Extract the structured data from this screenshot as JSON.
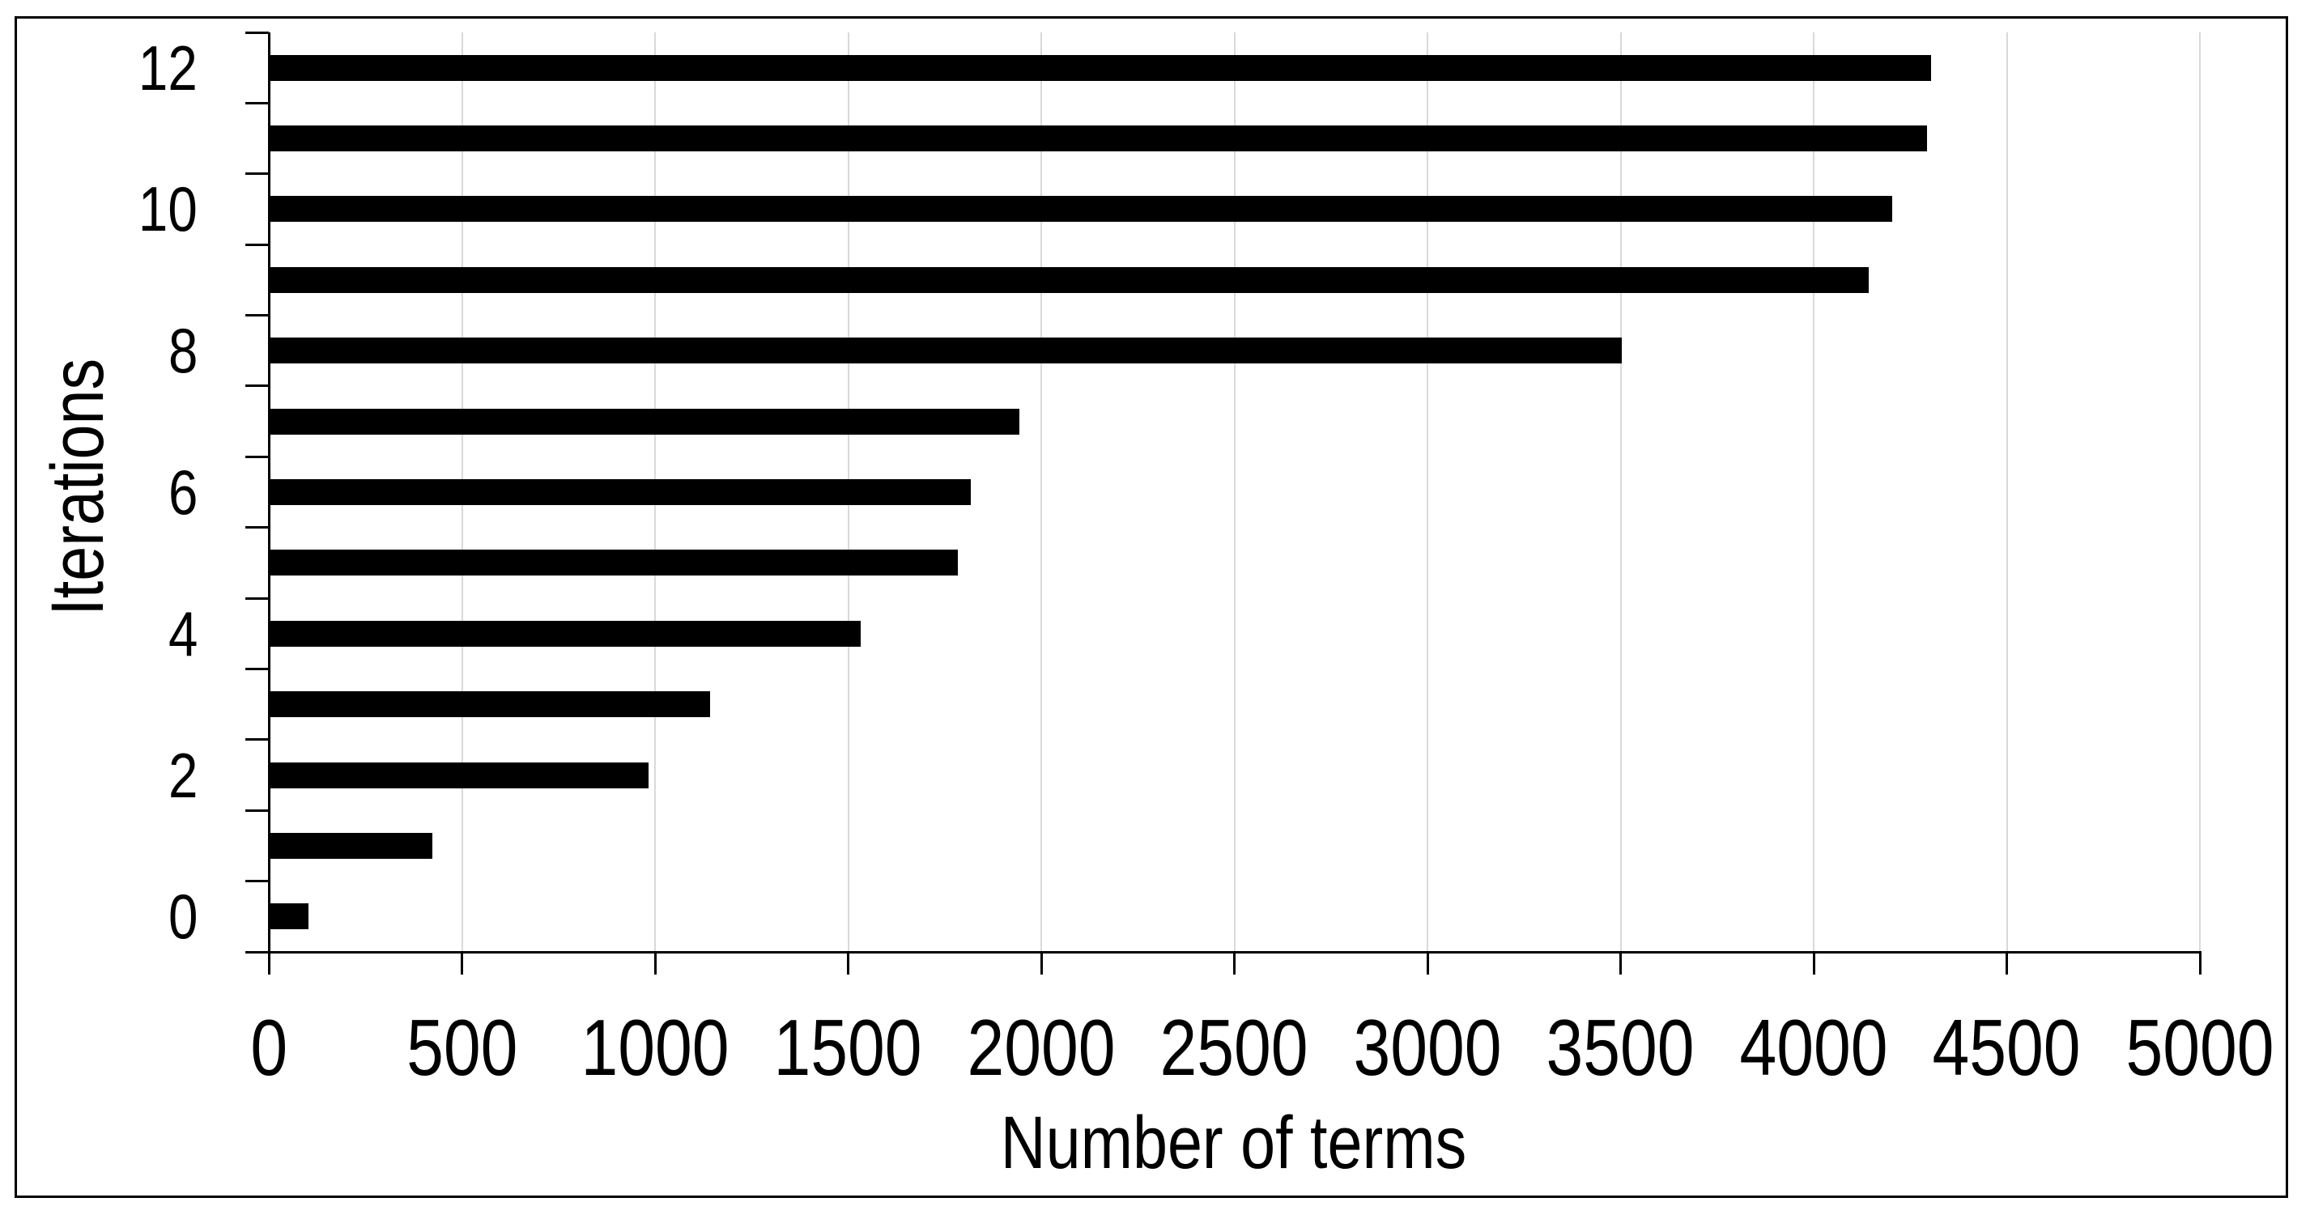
{
  "chart_data": {
    "type": "bar",
    "orientation": "horizontal",
    "title": "",
    "xlabel": "Number of terms",
    "ylabel": "Iterations",
    "categories": [
      0,
      1,
      2,
      3,
      4,
      5,
      6,
      7,
      8,
      9,
      10,
      11,
      12
    ],
    "values": [
      100,
      420,
      980,
      1140,
      1530,
      1780,
      1815,
      1940,
      3500,
      4140,
      4200,
      4290,
      4300
    ],
    "xlim": [
      0,
      5000
    ],
    "x_tick_step": 500,
    "x_tick_labels": [
      "0",
      "500",
      "1000",
      "1500",
      "2000",
      "2500",
      "3000",
      "3500",
      "4000",
      "4500",
      "5000"
    ],
    "y_tick_labels": [
      "0",
      "2",
      "4",
      "6",
      "8",
      "10",
      "12"
    ],
    "y_label_every": 2,
    "grid": "vertical",
    "legend": "none",
    "colors": {
      "bar": "#000000",
      "axis": "#000000",
      "gridline": "#d9d9d9",
      "text": "#000000",
      "background": "#ffffff",
      "border": "#000000"
    }
  }
}
